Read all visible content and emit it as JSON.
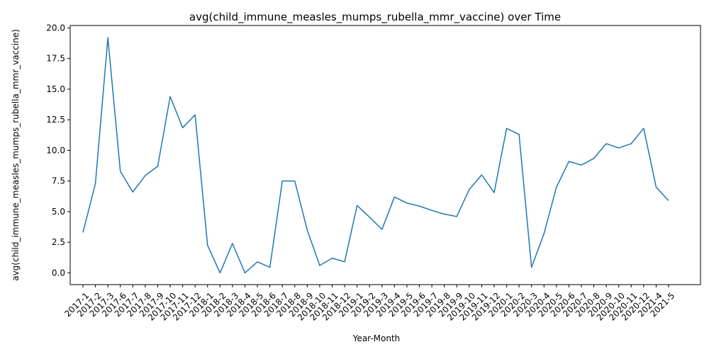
{
  "chart_data": {
    "type": "line",
    "title": "avg(child_immune_measles_mumps_rubella_mmr_vaccine) over Time",
    "xlabel": "Year-Month",
    "ylabel": "avg(child_immune_measles_mumps_rubella_mmr_vaccine)",
    "ylim": [
      -0.96,
      20.2
    ],
    "yticks": [
      "0.0",
      "2.5",
      "5.0",
      "7.5",
      "10.0",
      "12.5",
      "15.0",
      "17.5",
      "20.0"
    ],
    "ytick_values": [
      0,
      2.5,
      5,
      7.5,
      10,
      12.5,
      15,
      17.5,
      20
    ],
    "grid": false,
    "legend": "none",
    "line_color": "#1f77b4",
    "categories": [
      "2017-1",
      "2017-2",
      "2017-3",
      "2017-6",
      "2017-7",
      "2017-8",
      "2017-9",
      "2017-10",
      "2017-11",
      "2017-12",
      "2018-1",
      "2018-2",
      "2018-3",
      "2018-4",
      "2018-5",
      "2018-6",
      "2018-7",
      "2018-8",
      "2018-9",
      "2018-10",
      "2018-11",
      "2018-12",
      "2019-1",
      "2019-2",
      "2019-3",
      "2019-4",
      "2019-5",
      "2019-6",
      "2019-7",
      "2019-8",
      "2019-9",
      "2019-10",
      "2019-11",
      "2019-12",
      "2020-1",
      "2020-2",
      "2020-3",
      "2020-4",
      "2020-5",
      "2020-6",
      "2020-7",
      "2020-8",
      "2020-9",
      "2020-10",
      "2020-11",
      "2020-12",
      "2021-4",
      "2021-5"
    ],
    "values": [
      3.3,
      7.3,
      19.2,
      8.3,
      6.6,
      7.95,
      8.7,
      14.4,
      11.85,
      12.9,
      2.25,
      0.0,
      2.4,
      0.0,
      0.9,
      0.45,
      7.5,
      7.5,
      3.5,
      0.6,
      1.2,
      0.9,
      5.5,
      4.55,
      3.55,
      6.2,
      5.7,
      5.45,
      5.1,
      4.8,
      4.6,
      6.8,
      8.0,
      6.55,
      11.8,
      11.3,
      0.45,
      3.2,
      7.0,
      9.1,
      8.8,
      9.35,
      10.55,
      10.2,
      10.55,
      11.8,
      7.0,
      5.9
    ]
  }
}
